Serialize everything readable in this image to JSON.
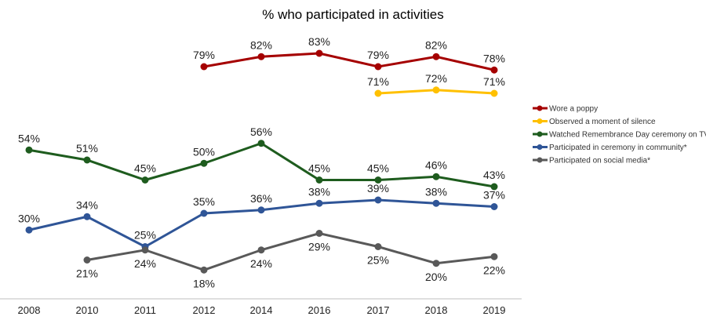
{
  "chart_data": {
    "type": "line",
    "title": "% who participated in activities",
    "categories": [
      "2008",
      "2010",
      "2011",
      "2012",
      "2014",
      "2016",
      "2017",
      "2018",
      "2019"
    ],
    "legend_position": "right",
    "grid": false,
    "value_suffix": "%",
    "series": [
      {
        "name": "Wore a poppy",
        "color": "#A50000",
        "values": [
          null,
          null,
          null,
          79,
          82,
          83,
          79,
          82,
          78
        ]
      },
      {
        "name": "Observed a moment of silence",
        "color": "#FFC000",
        "values": [
          null,
          null,
          null,
          null,
          null,
          null,
          71,
          72,
          71
        ]
      },
      {
        "name": "Watched Remembrance Day ceremony on TV*",
        "color": "#1E5C1E",
        "values": [
          54,
          51,
          45,
          50,
          56,
          45,
          45,
          46,
          43
        ]
      },
      {
        "name": "Participated in ceremony in community*",
        "color": "#2F5597",
        "values": [
          30,
          34,
          25,
          35,
          36,
          38,
          39,
          38,
          37
        ]
      },
      {
        "name": "Participated on social media*",
        "color": "#595959",
        "values": [
          null,
          21,
          24,
          18,
          24,
          29,
          25,
          20,
          22
        ]
      }
    ]
  }
}
